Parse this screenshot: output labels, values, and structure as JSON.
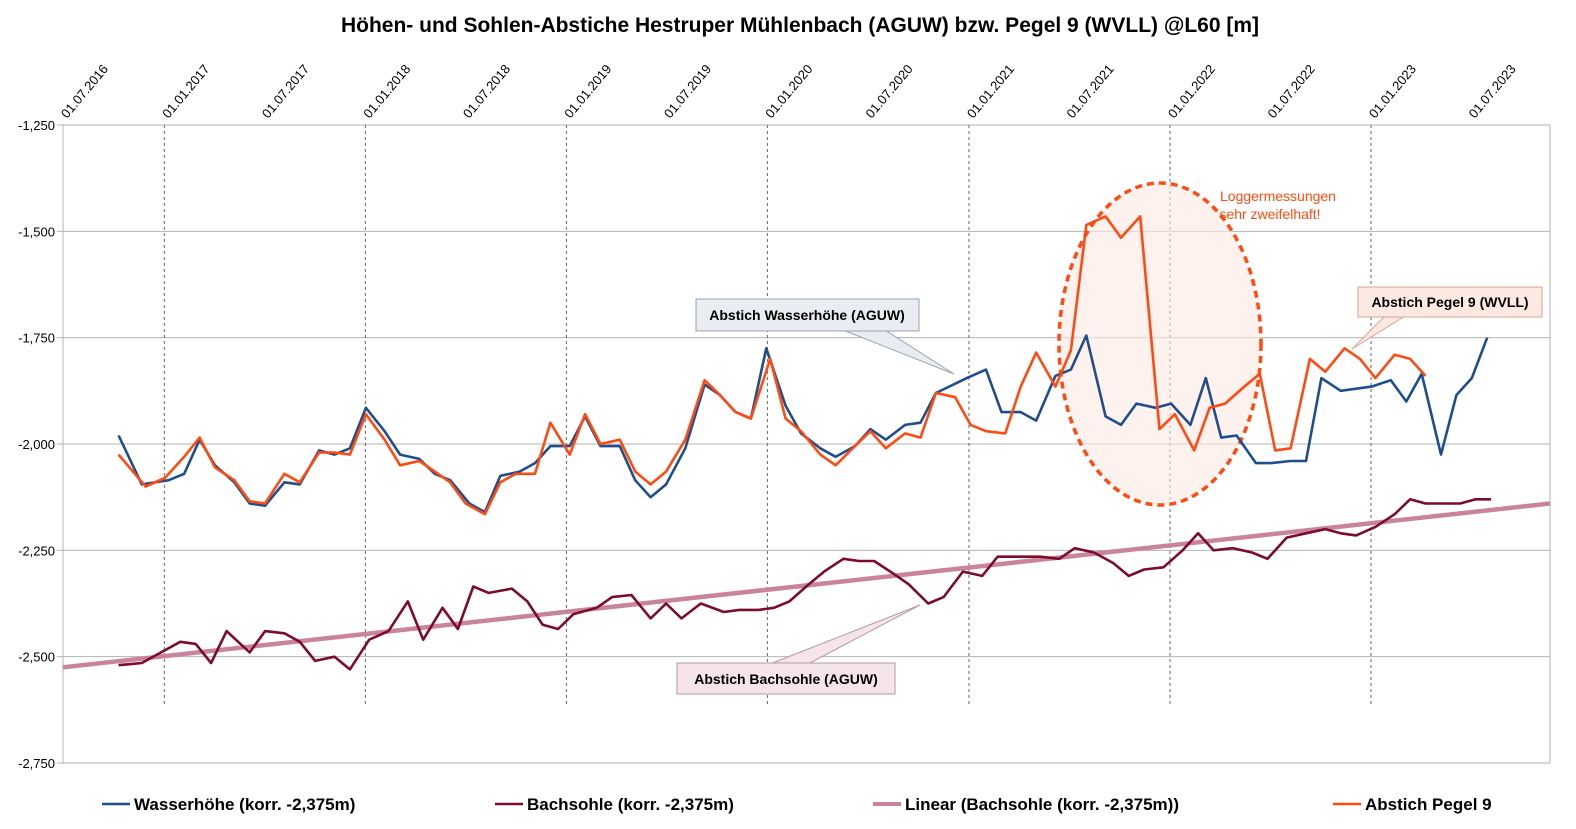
{
  "chart_data": {
    "type": "line",
    "title": "Höhen- und Sohlen-Abstiche Hestruper Mühlenbach (AGUW) bzw. Pegel 9 (WVLL) @L60 [m]",
    "ylim": [
      -2.75,
      -1.25
    ],
    "y_ticks": [
      "-1,250",
      "-1,500",
      "-1,750",
      "-2,000",
      "-2,250",
      "-2,500",
      "-2,750"
    ],
    "x_range": [
      "2016-07-01",
      "2023-11-22"
    ],
    "x_ticks": [
      {
        "date": "2016-07-01",
        "label": "01.07.2016"
      },
      {
        "date": "2017-01-01",
        "label": "01.01.2017"
      },
      {
        "date": "2017-07-01",
        "label": "01.07.2017"
      },
      {
        "date": "2018-01-01",
        "label": "01.01.2018"
      },
      {
        "date": "2018-07-01",
        "label": "01.07.2018"
      },
      {
        "date": "2019-01-01",
        "label": "01.01.2019"
      },
      {
        "date": "2019-07-01",
        "label": "01.07.2019"
      },
      {
        "date": "2020-01-01",
        "label": "01.01.2020"
      },
      {
        "date": "2020-07-01",
        "label": "01.07.2020"
      },
      {
        "date": "2021-01-01",
        "label": "01.01.2021"
      },
      {
        "date": "2021-07-01",
        "label": "01.07.2021"
      },
      {
        "date": "2022-01-01",
        "label": "01.01.2022"
      },
      {
        "date": "2022-07-01",
        "label": "01.07.2022"
      },
      {
        "date": "2023-01-01",
        "label": "01.01.2023"
      },
      {
        "date": "2023-07-01",
        "label": "01.07.2023"
      }
    ],
    "grid": "vertical dashed at January tick dates",
    "legend_position": "bottom",
    "series": [
      {
        "name": "Wasserhöhe (korr. -2,375m)",
        "color": "#1f4e8c",
        "points": [
          [
            "2016-10-10",
            -1.98
          ],
          [
            "2016-11-21",
            -2.095
          ],
          [
            "2017-01-09",
            -2.085
          ],
          [
            "2017-02-06",
            -2.07
          ],
          [
            "2017-03-06",
            -1.99
          ],
          [
            "2017-04-03",
            -2.05
          ],
          [
            "2017-05-08",
            -2.09
          ],
          [
            "2017-06-05",
            -2.14
          ],
          [
            "2017-07-03",
            -2.145
          ],
          [
            "2017-08-07",
            -2.09
          ],
          [
            "2017-09-04",
            -2.095
          ],
          [
            "2017-10-09",
            -2.015
          ],
          [
            "2017-11-06",
            -2.025
          ],
          [
            "2017-12-04",
            -2.01
          ],
          [
            "2018-01-02",
            -1.915
          ],
          [
            "2018-02-05",
            -1.97
          ],
          [
            "2018-03-05",
            -2.025
          ],
          [
            "2018-04-09",
            -2.035
          ],
          [
            "2018-05-07",
            -2.07
          ],
          [
            "2018-06-04",
            -2.085
          ],
          [
            "2018-07-09",
            -2.14
          ],
          [
            "2018-08-06",
            -2.16
          ],
          [
            "2018-09-03",
            -2.075
          ],
          [
            "2018-10-08",
            -2.065
          ],
          [
            "2018-11-05",
            -2.045
          ],
          [
            "2018-12-03",
            -2.005
          ],
          [
            "2019-01-07",
            -2.005
          ],
          [
            "2019-02-04",
            -1.935
          ],
          [
            "2019-03-04",
            -2.005
          ],
          [
            "2019-04-08",
            -2.005
          ],
          [
            "2019-05-06",
            -2.085
          ],
          [
            "2019-06-03",
            -2.125
          ],
          [
            "2019-07-01",
            -2.095
          ],
          [
            "2019-08-05",
            -2.01
          ],
          [
            "2019-09-09",
            -1.86
          ],
          [
            "2019-10-07",
            -1.885
          ],
          [
            "2019-11-04",
            -1.925
          ],
          [
            "2019-12-02",
            -1.94
          ],
          [
            "2019-12-30",
            -1.775
          ],
          [
            "2020-02-03",
            -1.91
          ],
          [
            "2020-03-02",
            -1.975
          ],
          [
            "2020-04-06",
            -2.01
          ],
          [
            "2020-05-04",
            -2.03
          ],
          [
            "2020-06-08",
            -2.005
          ],
          [
            "2020-07-06",
            -1.965
          ],
          [
            "2020-08-03",
            -1.99
          ],
          [
            "2020-09-07",
            -1.955
          ],
          [
            "2020-10-05",
            -1.95
          ],
          [
            "2020-11-02",
            -1.88
          ],
          [
            "2020-12-28",
            -1.845
          ],
          [
            "2021-02-01",
            -1.825
          ],
          [
            "2021-03-01",
            -1.925
          ],
          [
            "2021-04-05",
            -1.925
          ],
          [
            "2021-05-03",
            -1.945
          ],
          [
            "2021-06-07",
            -1.84
          ],
          [
            "2021-07-05",
            -1.825
          ],
          [
            "2021-08-02",
            -1.745
          ],
          [
            "2021-09-06",
            -1.935
          ],
          [
            "2021-10-04",
            -1.955
          ],
          [
            "2021-11-01",
            -1.905
          ],
          [
            "2021-12-06",
            -1.915
          ],
          [
            "2022-01-03",
            -1.905
          ],
          [
            "2022-02-07",
            -1.955
          ],
          [
            "2022-03-07",
            -1.845
          ],
          [
            "2022-04-04",
            -1.985
          ],
          [
            "2022-05-02",
            -1.98
          ],
          [
            "2022-06-06",
            -2.045
          ],
          [
            "2022-07-04",
            -2.045
          ],
          [
            "2022-08-08",
            -2.04
          ],
          [
            "2022-09-05",
            -2.04
          ],
          [
            "2022-10-03",
            -1.845
          ],
          [
            "2022-11-07",
            -1.875
          ],
          [
            "2023-01-02",
            -1.865
          ],
          [
            "2023-02-06",
            -1.85
          ],
          [
            "2023-03-06",
            -1.9
          ],
          [
            "2023-04-03",
            -1.835
          ],
          [
            "2023-05-08",
            -2.025
          ],
          [
            "2023-06-05",
            -1.885
          ],
          [
            "2023-07-03",
            -1.845
          ],
          [
            "2023-07-31",
            -1.75
          ]
        ]
      },
      {
        "name": "Bachsohle (korr. -2,375m)",
        "color": "#7b0c2c",
        "points": [
          [
            "2016-10-10",
            -2.52
          ],
          [
            "2016-11-21",
            -2.515
          ],
          [
            "2016-12-19",
            -2.495
          ],
          [
            "2017-01-30",
            -2.465
          ],
          [
            "2017-02-27",
            -2.47
          ],
          [
            "2017-03-27",
            -2.515
          ],
          [
            "2017-04-24",
            -2.44
          ],
          [
            "2017-06-05",
            -2.49
          ],
          [
            "2017-07-03",
            -2.44
          ],
          [
            "2017-08-07",
            -2.445
          ],
          [
            "2017-09-04",
            -2.465
          ],
          [
            "2017-10-02",
            -2.51
          ],
          [
            "2017-11-06",
            -2.5
          ],
          [
            "2017-12-04",
            -2.53
          ],
          [
            "2018-01-08",
            -2.46
          ],
          [
            "2018-02-12",
            -2.44
          ],
          [
            "2018-03-19",
            -2.37
          ],
          [
            "2018-04-16",
            -2.46
          ],
          [
            "2018-05-21",
            -2.385
          ],
          [
            "2018-06-18",
            -2.435
          ],
          [
            "2018-07-16",
            -2.335
          ],
          [
            "2018-08-13",
            -2.35
          ],
          [
            "2018-09-24",
            -2.34
          ],
          [
            "2018-10-22",
            -2.37
          ],
          [
            "2018-11-19",
            -2.425
          ],
          [
            "2018-12-17",
            -2.435
          ],
          [
            "2019-01-14",
            -2.4
          ],
          [
            "2019-02-25",
            -2.385
          ],
          [
            "2019-03-25",
            -2.36
          ],
          [
            "2019-04-29",
            -2.355
          ],
          [
            "2019-06-03",
            -2.41
          ],
          [
            "2019-07-01",
            -2.375
          ],
          [
            "2019-07-29",
            -2.41
          ],
          [
            "2019-09-02",
            -2.375
          ],
          [
            "2019-10-14",
            -2.395
          ],
          [
            "2019-11-11",
            -2.39
          ],
          [
            "2019-12-16",
            -2.39
          ],
          [
            "2020-01-13",
            -2.385
          ],
          [
            "2020-02-10",
            -2.37
          ],
          [
            "2020-03-16",
            -2.33
          ],
          [
            "2020-04-13",
            -2.3
          ],
          [
            "2020-05-18",
            -2.27
          ],
          [
            "2020-06-15",
            -2.275
          ],
          [
            "2020-07-13",
            -2.275
          ],
          [
            "2020-08-17",
            -2.305
          ],
          [
            "2020-09-14",
            -2.33
          ],
          [
            "2020-10-19",
            -2.375
          ],
          [
            "2020-11-16",
            -2.36
          ],
          [
            "2020-12-21",
            -2.3
          ],
          [
            "2021-01-25",
            -2.31
          ],
          [
            "2021-02-22",
            -2.265
          ],
          [
            "2021-04-05",
            -2.265
          ],
          [
            "2021-05-10",
            -2.265
          ],
          [
            "2021-06-14",
            -2.27
          ],
          [
            "2021-07-12",
            -2.245
          ],
          [
            "2021-08-16",
            -2.255
          ],
          [
            "2021-09-20",
            -2.28
          ],
          [
            "2021-10-18",
            -2.31
          ],
          [
            "2021-11-15",
            -2.295
          ],
          [
            "2021-12-20",
            -2.29
          ],
          [
            "2022-01-24",
            -2.25
          ],
          [
            "2022-02-21",
            -2.21
          ],
          [
            "2022-03-21",
            -2.25
          ],
          [
            "2022-04-25",
            -2.245
          ],
          [
            "2022-05-30",
            -2.255
          ],
          [
            "2022-06-27",
            -2.27
          ],
          [
            "2022-08-01",
            -2.22
          ],
          [
            "2022-09-05",
            -2.21
          ],
          [
            "2022-10-10",
            -2.2
          ],
          [
            "2022-11-07",
            -2.21
          ],
          [
            "2022-12-05",
            -2.215
          ],
          [
            "2023-01-09",
            -2.195
          ],
          [
            "2023-02-13",
            -2.165
          ],
          [
            "2023-03-13",
            -2.13
          ],
          [
            "2023-04-10",
            -2.14
          ],
          [
            "2023-05-15",
            -2.14
          ],
          [
            "2023-06-12",
            -2.14
          ],
          [
            "2023-07-10",
            -2.13
          ],
          [
            "2023-08-07",
            -2.13
          ]
        ]
      },
      {
        "name": "Linear (Bachsohle (korr. -2,375m))",
        "color": "#c9849b",
        "points": [
          [
            "2016-07-01",
            -2.525
          ],
          [
            "2023-11-22",
            -2.14
          ]
        ]
      },
      {
        "name": "Abstich Pegel 9",
        "color": "#ff4b12",
        "points": [
          [
            "2016-10-10",
            -2.025
          ],
          [
            "2016-11-28",
            -2.1
          ],
          [
            "2017-01-02",
            -2.08
          ],
          [
            "2017-02-06",
            -2.03
          ],
          [
            "2017-03-06",
            -1.985
          ],
          [
            "2017-04-03",
            -2.055
          ],
          [
            "2017-05-08",
            -2.085
          ],
          [
            "2017-06-05",
            -2.135
          ],
          [
            "2017-07-03",
            -2.14
          ],
          [
            "2017-08-07",
            -2.07
          ],
          [
            "2017-09-04",
            -2.09
          ],
          [
            "2017-10-09",
            -2.02
          ],
          [
            "2017-11-06",
            -2.02
          ],
          [
            "2017-12-04",
            -2.025
          ],
          [
            "2018-01-02",
            -1.93
          ],
          [
            "2018-02-05",
            -1.99
          ],
          [
            "2018-03-05",
            -2.05
          ],
          [
            "2018-04-09",
            -2.04
          ],
          [
            "2018-05-07",
            -2.065
          ],
          [
            "2018-06-04",
            -2.09
          ],
          [
            "2018-07-02",
            -2.14
          ],
          [
            "2018-08-06",
            -2.165
          ],
          [
            "2018-09-03",
            -2.09
          ],
          [
            "2018-10-01",
            -2.07
          ],
          [
            "2018-11-05",
            -2.07
          ],
          [
            "2018-12-03",
            -1.95
          ],
          [
            "2019-01-07",
            -2.025
          ],
          [
            "2019-02-04",
            -1.93
          ],
          [
            "2019-03-04",
            -2.0
          ],
          [
            "2019-04-08",
            -1.99
          ],
          [
            "2019-05-06",
            -2.065
          ],
          [
            "2019-06-03",
            -2.095
          ],
          [
            "2019-07-01",
            -2.065
          ],
          [
            "2019-08-05",
            -1.99
          ],
          [
            "2019-09-09",
            -1.85
          ],
          [
            "2019-10-07",
            -1.885
          ],
          [
            "2019-11-04",
            -1.925
          ],
          [
            "2019-12-02",
            -1.94
          ],
          [
            "2020-01-06",
            -1.8
          ],
          [
            "2020-02-03",
            -1.94
          ],
          [
            "2020-03-02",
            -1.97
          ],
          [
            "2020-04-06",
            -2.025
          ],
          [
            "2020-05-04",
            -2.05
          ],
          [
            "2020-06-08",
            -2.005
          ],
          [
            "2020-07-06",
            -1.97
          ],
          [
            "2020-08-03",
            -2.01
          ],
          [
            "2020-09-07",
            -1.975
          ],
          [
            "2020-10-05",
            -1.985
          ],
          [
            "2020-11-02",
            -1.88
          ],
          [
            "2020-12-07",
            -1.89
          ],
          [
            "2021-01-04",
            -1.955
          ],
          [
            "2021-02-01",
            -1.97
          ],
          [
            "2021-03-08",
            -1.975
          ],
          [
            "2021-04-05",
            -1.865
          ],
          [
            "2021-05-03",
            -1.785
          ],
          [
            "2021-06-07",
            -1.865
          ],
          [
            "2021-07-05",
            -1.78
          ],
          [
            "2021-08-02",
            -1.485
          ],
          [
            "2021-09-06",
            -1.465
          ],
          [
            "2021-10-04",
            -1.515
          ],
          [
            "2021-11-08",
            -1.465
          ],
          [
            "2021-12-13",
            -1.965
          ],
          [
            "2022-01-10",
            -1.93
          ],
          [
            "2022-02-14",
            -2.015
          ],
          [
            "2022-03-14",
            -1.915
          ],
          [
            "2022-04-11",
            -1.905
          ],
          [
            "2022-05-16",
            -1.865
          ],
          [
            "2022-06-13",
            -1.835
          ],
          [
            "2022-07-11",
            -2.015
          ],
          [
            "2022-08-08",
            -2.01
          ],
          [
            "2022-09-12",
            -1.8
          ],
          [
            "2022-10-10",
            -1.83
          ],
          [
            "2022-11-14",
            -1.775
          ],
          [
            "2022-12-12",
            -1.8
          ],
          [
            "2023-01-09",
            -1.845
          ],
          [
            "2023-02-13",
            -1.79
          ],
          [
            "2023-03-13",
            -1.8
          ],
          [
            "2023-04-10",
            -1.84
          ]
        ]
      }
    ],
    "annotations": [
      {
        "id": "note",
        "text": [
          "Loggermessungen",
          "sehr zweifelhaft!"
        ],
        "color": "#ff4b12"
      },
      {
        "id": "wasser",
        "text": "Abstich Wasserhöhe (AGUW)"
      },
      {
        "id": "pegel",
        "text": "Abstich Pegel 9 (WVLL)"
      },
      {
        "id": "sohle",
        "text": "Abstich Bachsohle (AGUW)"
      }
    ]
  }
}
